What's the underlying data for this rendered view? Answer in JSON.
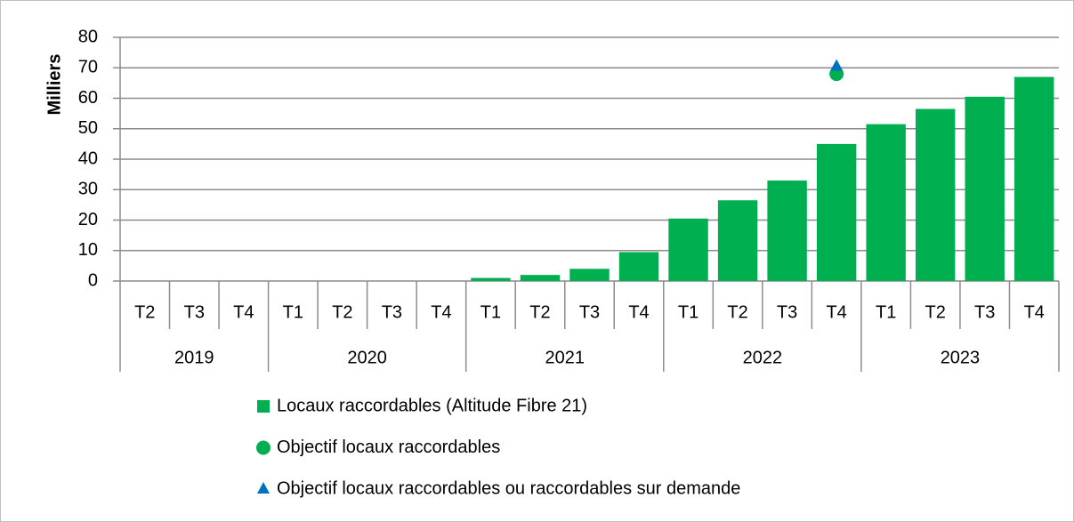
{
  "chart_data": {
    "type": "bar",
    "y_axis_label": "Milliers",
    "groups": [
      {
        "name": "2019",
        "categories": [
          "T2",
          "T3",
          "T4"
        ]
      },
      {
        "name": "2020",
        "categories": [
          "T1",
          "T2",
          "T3",
          "T4"
        ]
      },
      {
        "name": "2021",
        "categories": [
          "T1",
          "T2",
          "T3",
          "T4"
        ]
      },
      {
        "name": "2022",
        "categories": [
          "T1",
          "T2",
          "T3",
          "T4"
        ]
      },
      {
        "name": "2023",
        "categories": [
          "T1",
          "T2",
          "T3",
          "T4"
        ]
      }
    ],
    "series": [
      {
        "name": "Locaux raccordables (Altitude Fibre 21)",
        "color": "#00b050",
        "marker": "square",
        "values": [
          0,
          0,
          0,
          0,
          0,
          0,
          0,
          1,
          2,
          4,
          9.5,
          20.5,
          26.5,
          33,
          45,
          51.5,
          56.5,
          60.5,
          67
        ]
      },
      {
        "name": "Objectif locaux raccordables",
        "color": "#00b050",
        "marker": "circle",
        "values": [
          null,
          null,
          null,
          null,
          null,
          null,
          null,
          null,
          null,
          null,
          null,
          null,
          null,
          null,
          68,
          null,
          null,
          null,
          null
        ]
      },
      {
        "name": "Objectif locaux raccordables ou raccordables sur demande",
        "color": "#0070c0",
        "marker": "triangle",
        "values": [
          null,
          null,
          null,
          null,
          null,
          null,
          null,
          null,
          null,
          null,
          null,
          null,
          null,
          null,
          70.5,
          null,
          null,
          null,
          null
        ]
      }
    ],
    "ylim": [
      0,
      80
    ],
    "yticks": [
      0,
      10,
      20,
      30,
      40,
      50,
      60,
      70,
      80
    ],
    "grid": true
  }
}
